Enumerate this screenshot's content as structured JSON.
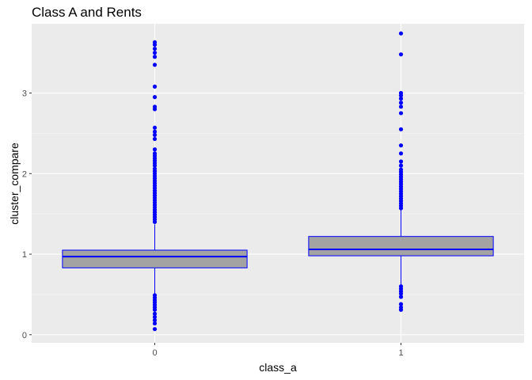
{
  "chart_data": {
    "type": "box",
    "title": "Class A and Rents",
    "xlabel": "class_a",
    "ylabel": "cluster_compare",
    "categories": [
      "0",
      "1"
    ],
    "ylim": [
      -0.1,
      3.86
    ],
    "yticks": [
      0,
      1,
      2,
      3
    ],
    "grid": true,
    "colors": {
      "panel": "#ebebeb",
      "grid_major": "#ffffff",
      "box_fill": "#a3a3a3",
      "box_stroke": "#0000ff",
      "outlier": "#0000ff",
      "tick_text": "#4d4d4d"
    },
    "boxes": [
      {
        "category": "0",
        "lower_whisker": 0.51,
        "q1": 0.83,
        "median": 0.97,
        "q3": 1.05,
        "upper_whisker": 1.37,
        "outliers": [
          3.63,
          3.6,
          3.55,
          3.5,
          3.45,
          3.35,
          3.08,
          2.95,
          2.83,
          2.8,
          2.57,
          2.52,
          2.48,
          2.43,
          2.3,
          2.25,
          2.22,
          2.19,
          2.16,
          2.13,
          2.1,
          2.06,
          2.03,
          2.0,
          1.97,
          1.94,
          1.91,
          1.88,
          1.85,
          1.82,
          1.79,
          1.76,
          1.73,
          1.7,
          1.67,
          1.64,
          1.61,
          1.58,
          1.55,
          1.52,
          1.49,
          1.46,
          1.43,
          1.4,
          0.49,
          0.46,
          0.43,
          0.4,
          0.37,
          0.34,
          0.31,
          0.26,
          0.22,
          0.18,
          0.14,
          0.07
        ]
      },
      {
        "category": "1",
        "lower_whisker": 0.62,
        "q1": 0.98,
        "median": 1.06,
        "q3": 1.22,
        "upper_whisker": 1.55,
        "outliers": [
          3.74,
          3.48,
          3.0,
          2.97,
          2.93,
          2.88,
          2.83,
          2.75,
          2.55,
          2.35,
          2.25,
          2.15,
          2.1,
          2.05,
          2.02,
          1.99,
          1.96,
          1.93,
          1.9,
          1.87,
          1.84,
          1.81,
          1.78,
          1.75,
          1.72,
          1.69,
          1.66,
          1.63,
          1.6,
          1.57,
          0.6,
          0.57,
          0.54,
          0.51,
          0.47,
          0.38,
          0.34,
          0.31
        ]
      }
    ]
  }
}
